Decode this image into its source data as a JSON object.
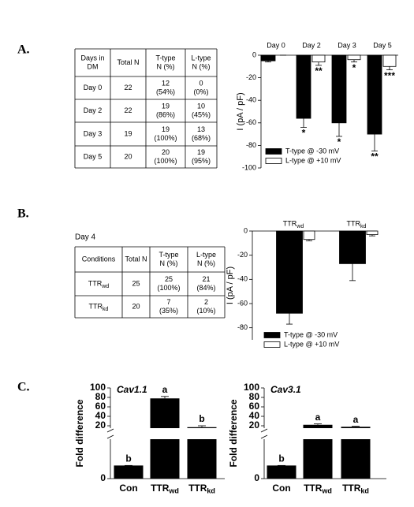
{
  "panel_labels": [
    "A.",
    "B.",
    "C."
  ],
  "table_a": {
    "header": [
      [
        "Days in",
        "DM"
      ],
      [
        "Total N"
      ],
      [
        "T-type",
        "N (%)"
      ],
      [
        "L-type",
        "N (%)"
      ]
    ],
    "rows": [
      [
        [
          "Day 0"
        ],
        [
          "22"
        ],
        [
          "12",
          "(54%)"
        ],
        [
          "0",
          "(0%)"
        ]
      ],
      [
        [
          "Day 2"
        ],
        [
          "22"
        ],
        [
          "19",
          "(86%)"
        ],
        [
          "10",
          "(45%)"
        ]
      ],
      [
        [
          "Day 3"
        ],
        [
          "19"
        ],
        [
          "19",
          "(100%)"
        ],
        [
          "13",
          "(68%)"
        ]
      ],
      [
        [
          "Day 5"
        ],
        [
          "20"
        ],
        [
          "20",
          "(100%)"
        ],
        [
          "19",
          "(95%)"
        ]
      ]
    ]
  },
  "table_b": {
    "caption": "Day 4",
    "header": [
      [
        "Conditions"
      ],
      [
        "Total N"
      ],
      [
        "T-type",
        "N (%)"
      ],
      [
        "L-type",
        "N (%)"
      ]
    ],
    "rows": [
      [
        [
          {
            "text": "TTR",
            "sub": "wd"
          }
        ],
        [
          "25"
        ],
        [
          "25",
          "(100%)"
        ],
        [
          "21",
          "(84%)"
        ]
      ],
      [
        [
          {
            "text": "TTR",
            "sub": "kd"
          }
        ],
        [
          "20"
        ],
        [
          "7",
          "(35%)"
        ],
        [
          "2",
          "(10%)"
        ]
      ]
    ]
  },
  "chart_data": [
    {
      "type": "bar",
      "ylabel": "I (pA / pF)",
      "categories": [
        "Day 0",
        "Day 2",
        "Day 3",
        "Day 5"
      ],
      "ylim": [
        -100,
        0
      ],
      "yticks": [
        0,
        -20,
        -40,
        -60,
        -80,
        -100
      ],
      "legend": "lower left",
      "series": [
        {
          "name": "T-type @ -30 mV",
          "color": "#000000",
          "values": [
            -5,
            -56,
            -60,
            -70
          ],
          "errors": [
            1,
            8,
            12,
            15
          ],
          "labels": [
            null,
            "*",
            "*",
            "**"
          ]
        },
        {
          "name": "L-type @ +10 mV",
          "color": "#ffffff",
          "values": [
            0,
            -6,
            -4,
            -10
          ],
          "errors": [
            0,
            3,
            2,
            3
          ],
          "labels": [
            null,
            "**",
            "*",
            "***"
          ]
        }
      ]
    },
    {
      "type": "bar",
      "ylabel": "I (pA / pF)",
      "categories": [
        {
          "text": "TTR",
          "sub": "wd"
        },
        {
          "text": "TTR",
          "sub": "kd"
        }
      ],
      "ylim": [
        -90,
        0
      ],
      "yticks": [
        0,
        -20,
        -40,
        -60,
        -80
      ],
      "legend": "lower left",
      "series": [
        {
          "name": "T-type @ -30 mV",
          "color": "#000000",
          "values": [
            -68,
            -27
          ],
          "errors": [
            9,
            14
          ]
        },
        {
          "name": "L-type @ +10 mV",
          "color": "#ffffff",
          "values": [
            -7,
            -3
          ],
          "errors": [
            1,
            1
          ]
        }
      ]
    },
    {
      "type": "broken_bar",
      "title": "Cav1.1",
      "ylabel": "Fold difference",
      "categories": [
        "Con",
        {
          "text": "TTR",
          "sub": "wd"
        },
        {
          "text": "TTR",
          "sub": "kd"
        }
      ],
      "values": [
        1,
        78,
        17
      ],
      "errors": [
        0,
        4,
        3
      ],
      "letters": [
        "b",
        "a",
        "b"
      ],
      "color": "#000000",
      "ylim": [
        0,
        100
      ],
      "axis_break": [
        3,
        15
      ],
      "yticks": [
        0,
        20,
        40,
        60,
        80,
        100
      ]
    },
    {
      "type": "broken_bar",
      "title": "Cav3.1",
      "ylabel": "Fold difference",
      "categories": [
        "Con",
        {
          "text": "TTR",
          "sub": "wd"
        },
        {
          "text": "TTR",
          "sub": "kd"
        }
      ],
      "values": [
        1,
        22,
        18
      ],
      "errors": [
        0,
        2,
        1
      ],
      "letters": [
        "b",
        "a",
        "a"
      ],
      "color": "#000000",
      "ylim": [
        0,
        100
      ],
      "axis_break": [
        3,
        15
      ],
      "yticks": [
        0,
        20,
        40,
        60,
        80,
        100
      ]
    }
  ]
}
